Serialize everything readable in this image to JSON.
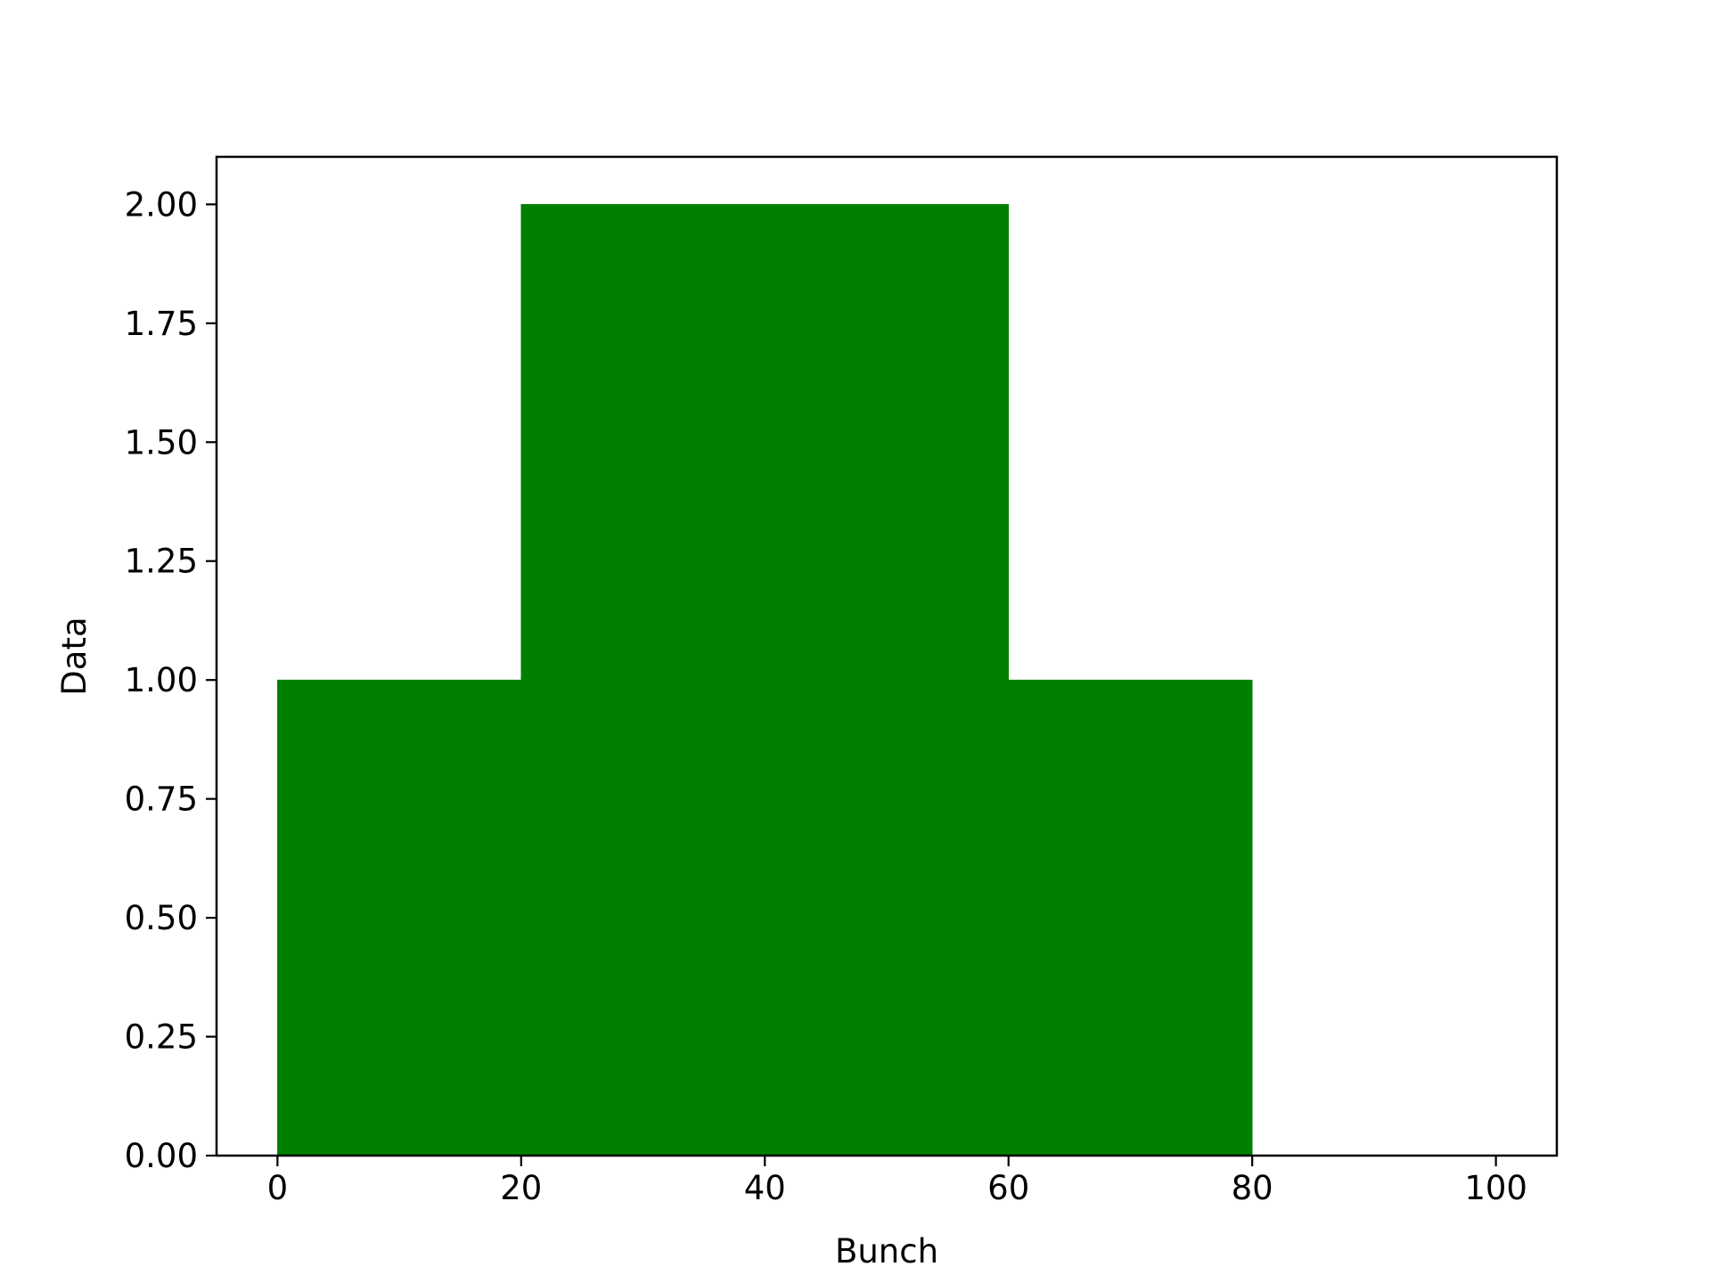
{
  "chart_data": {
    "type": "bar",
    "title": "",
    "xlabel": "Bunch",
    "ylabel": "Data",
    "bins": [
      {
        "x0": 0,
        "x1": 20,
        "value": 1
      },
      {
        "x0": 20,
        "x1": 40,
        "value": 2
      },
      {
        "x0": 40,
        "x1": 60,
        "value": 2
      },
      {
        "x0": 60,
        "x1": 80,
        "value": 1
      }
    ],
    "xlim": [
      -5,
      105
    ],
    "ylim": [
      0,
      2.1
    ],
    "xticks": [
      0,
      20,
      40,
      60,
      80,
      100
    ],
    "xtick_labels": [
      "0",
      "20",
      "40",
      "60",
      "80",
      "100"
    ],
    "yticks": [
      0,
      0.25,
      0.5,
      0.75,
      1.0,
      1.25,
      1.5,
      1.75,
      2.0
    ],
    "ytick_labels": [
      "0.00",
      "0.25",
      "0.50",
      "0.75",
      "1.00",
      "1.25",
      "1.50",
      "1.75",
      "2.00"
    ],
    "bar_color": "#008000",
    "grid": false,
    "legend": "none"
  }
}
